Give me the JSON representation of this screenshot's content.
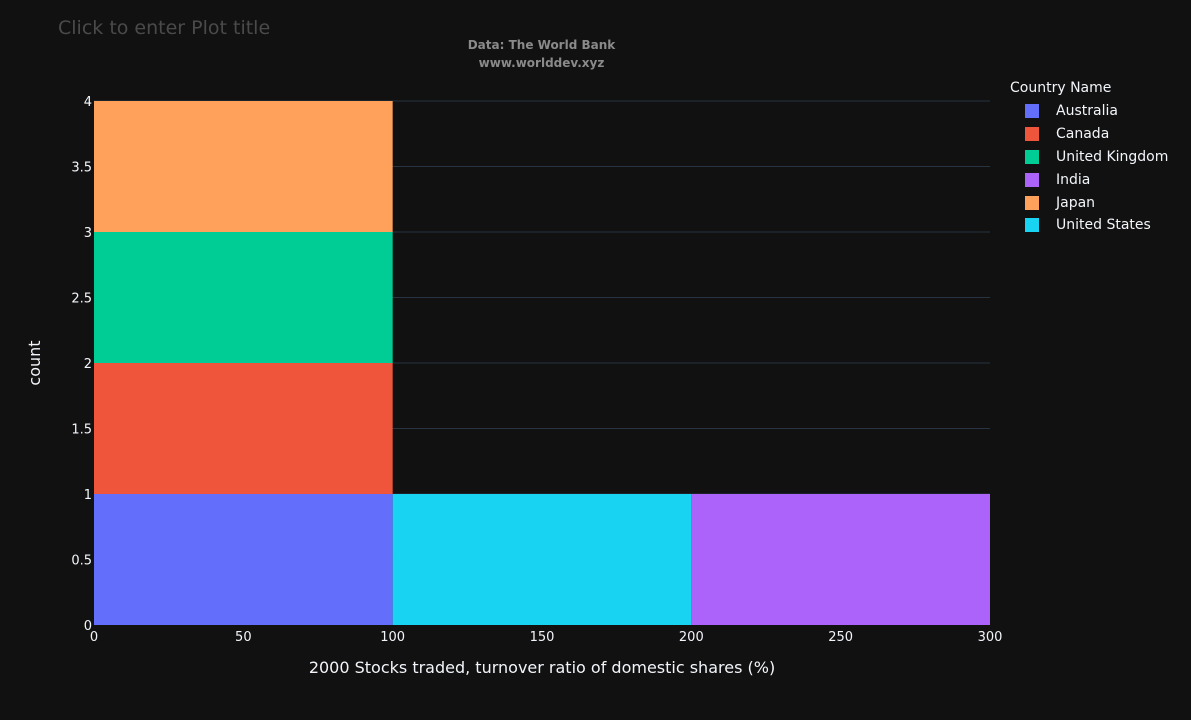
{
  "plot_title_placeholder": "Click to enter Plot title",
  "annotations": [
    "Data: The World Bank",
    "www.worlddev.xyz"
  ],
  "legend": {
    "title": "Country Name",
    "items": [
      {
        "name": "Australia",
        "color": "#636efa"
      },
      {
        "name": "Canada",
        "color": "#ef553b"
      },
      {
        "name": "United Kingdom",
        "color": "#00cc96"
      },
      {
        "name": "India",
        "color": "#ab63fa"
      },
      {
        "name": "Japan",
        "color": "#ffa15a"
      },
      {
        "name": "United States",
        "color": "#19d3f3"
      }
    ]
  },
  "chart_data": {
    "type": "bar",
    "subtype": "stacked histogram",
    "title": "",
    "xlabel": "2000 Stocks traded, turnover ratio of domestic shares (%)",
    "ylabel": "count",
    "xlim": [
      0,
      300
    ],
    "ylim": [
      0,
      4
    ],
    "x_ticks": [
      "0",
      "50",
      "100",
      "150",
      "200",
      "250",
      "300"
    ],
    "y_ticks": [
      "0",
      "0.5",
      "1",
      "1.5",
      "2",
      "2.5",
      "3",
      "3.5",
      "4"
    ],
    "bins": [
      [
        0,
        100
      ],
      [
        100,
        200
      ],
      [
        200,
        300
      ]
    ],
    "series": [
      {
        "name": "Australia",
        "values": [
          1,
          0,
          0
        ]
      },
      {
        "name": "Canada",
        "values": [
          1,
          0,
          0
        ]
      },
      {
        "name": "United Kingdom",
        "values": [
          1,
          0,
          0
        ]
      },
      {
        "name": "India",
        "values": [
          0,
          0,
          1
        ]
      },
      {
        "name": "Japan",
        "values": [
          1,
          0,
          0
        ]
      },
      {
        "name": "United States",
        "values": [
          0,
          1,
          0
        ]
      }
    ],
    "grid": true,
    "legend_position": "right",
    "background": "#111111",
    "grid_color": "#283442",
    "tick_color": "#f2f5fa"
  }
}
